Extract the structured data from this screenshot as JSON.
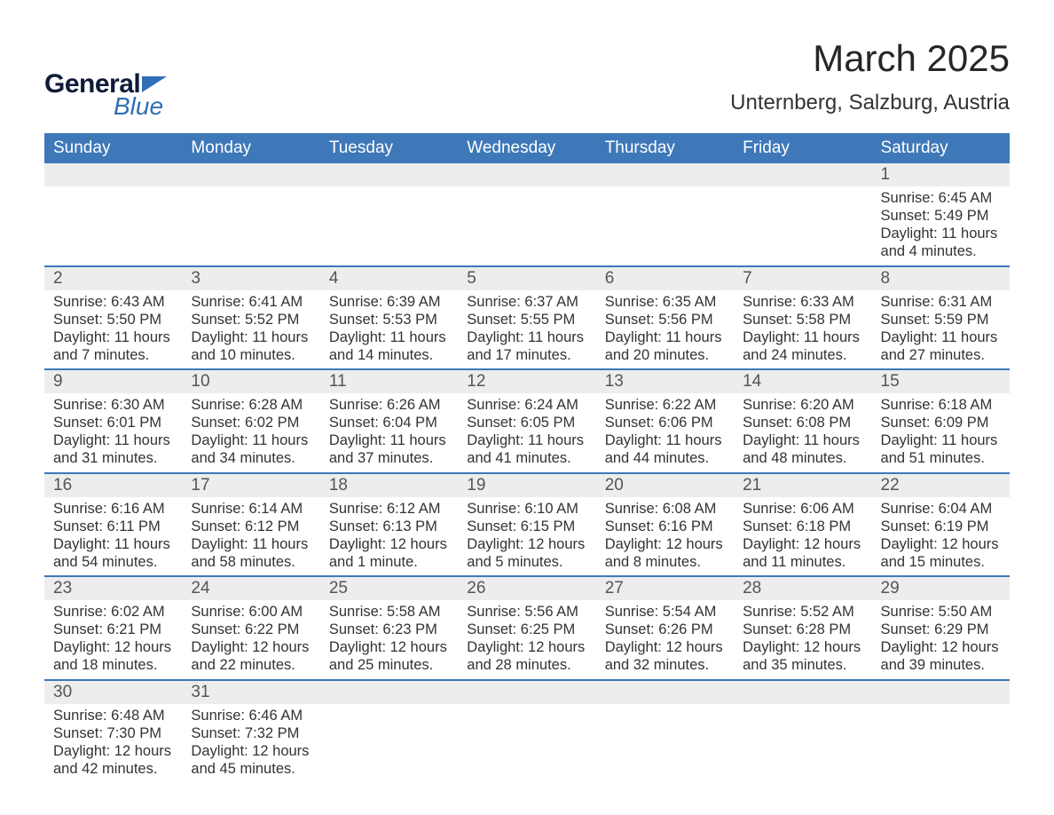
{
  "logo": {
    "word1": "General",
    "word2": "Blue",
    "brand_navy": "#0f1a3a",
    "brand_blue": "#2f6fb5"
  },
  "title": "March 2025",
  "location": "Unternberg, Salzburg, Austria",
  "styles": {
    "header_bg": "#3e78b9",
    "header_fg": "#ffffff",
    "daynum_bg": "#ededed",
    "week_divider": "#3e78b9",
    "body_fg": "#333333",
    "title_fontsize": 42,
    "location_fontsize": 24,
    "dayheader_fontsize": 19,
    "daynum_fontsize": 19,
    "body_fontsize": 16.5
  },
  "day_names": [
    "Sunday",
    "Monday",
    "Tuesday",
    "Wednesday",
    "Thursday",
    "Friday",
    "Saturday"
  ],
  "weeks": [
    [
      {
        "n": "",
        "sr": "",
        "ss": "",
        "dl": ""
      },
      {
        "n": "",
        "sr": "",
        "ss": "",
        "dl": ""
      },
      {
        "n": "",
        "sr": "",
        "ss": "",
        "dl": ""
      },
      {
        "n": "",
        "sr": "",
        "ss": "",
        "dl": ""
      },
      {
        "n": "",
        "sr": "",
        "ss": "",
        "dl": ""
      },
      {
        "n": "",
        "sr": "",
        "ss": "",
        "dl": ""
      },
      {
        "n": "1",
        "sr": "Sunrise: 6:45 AM",
        "ss": "Sunset: 5:49 PM",
        "dl": "Daylight: 11 hours and 4 minutes."
      }
    ],
    [
      {
        "n": "2",
        "sr": "Sunrise: 6:43 AM",
        "ss": "Sunset: 5:50 PM",
        "dl": "Daylight: 11 hours and 7 minutes."
      },
      {
        "n": "3",
        "sr": "Sunrise: 6:41 AM",
        "ss": "Sunset: 5:52 PM",
        "dl": "Daylight: 11 hours and 10 minutes."
      },
      {
        "n": "4",
        "sr": "Sunrise: 6:39 AM",
        "ss": "Sunset: 5:53 PM",
        "dl": "Daylight: 11 hours and 14 minutes."
      },
      {
        "n": "5",
        "sr": "Sunrise: 6:37 AM",
        "ss": "Sunset: 5:55 PM",
        "dl": "Daylight: 11 hours and 17 minutes."
      },
      {
        "n": "6",
        "sr": "Sunrise: 6:35 AM",
        "ss": "Sunset: 5:56 PM",
        "dl": "Daylight: 11 hours and 20 minutes."
      },
      {
        "n": "7",
        "sr": "Sunrise: 6:33 AM",
        "ss": "Sunset: 5:58 PM",
        "dl": "Daylight: 11 hours and 24 minutes."
      },
      {
        "n": "8",
        "sr": "Sunrise: 6:31 AM",
        "ss": "Sunset: 5:59 PM",
        "dl": "Daylight: 11 hours and 27 minutes."
      }
    ],
    [
      {
        "n": "9",
        "sr": "Sunrise: 6:30 AM",
        "ss": "Sunset: 6:01 PM",
        "dl": "Daylight: 11 hours and 31 minutes."
      },
      {
        "n": "10",
        "sr": "Sunrise: 6:28 AM",
        "ss": "Sunset: 6:02 PM",
        "dl": "Daylight: 11 hours and 34 minutes."
      },
      {
        "n": "11",
        "sr": "Sunrise: 6:26 AM",
        "ss": "Sunset: 6:04 PM",
        "dl": "Daylight: 11 hours and 37 minutes."
      },
      {
        "n": "12",
        "sr": "Sunrise: 6:24 AM",
        "ss": "Sunset: 6:05 PM",
        "dl": "Daylight: 11 hours and 41 minutes."
      },
      {
        "n": "13",
        "sr": "Sunrise: 6:22 AM",
        "ss": "Sunset: 6:06 PM",
        "dl": "Daylight: 11 hours and 44 minutes."
      },
      {
        "n": "14",
        "sr": "Sunrise: 6:20 AM",
        "ss": "Sunset: 6:08 PM",
        "dl": "Daylight: 11 hours and 48 minutes."
      },
      {
        "n": "15",
        "sr": "Sunrise: 6:18 AM",
        "ss": "Sunset: 6:09 PM",
        "dl": "Daylight: 11 hours and 51 minutes."
      }
    ],
    [
      {
        "n": "16",
        "sr": "Sunrise: 6:16 AM",
        "ss": "Sunset: 6:11 PM",
        "dl": "Daylight: 11 hours and 54 minutes."
      },
      {
        "n": "17",
        "sr": "Sunrise: 6:14 AM",
        "ss": "Sunset: 6:12 PM",
        "dl": "Daylight: 11 hours and 58 minutes."
      },
      {
        "n": "18",
        "sr": "Sunrise: 6:12 AM",
        "ss": "Sunset: 6:13 PM",
        "dl": "Daylight: 12 hours and 1 minute."
      },
      {
        "n": "19",
        "sr": "Sunrise: 6:10 AM",
        "ss": "Sunset: 6:15 PM",
        "dl": "Daylight: 12 hours and 5 minutes."
      },
      {
        "n": "20",
        "sr": "Sunrise: 6:08 AM",
        "ss": "Sunset: 6:16 PM",
        "dl": "Daylight: 12 hours and 8 minutes."
      },
      {
        "n": "21",
        "sr": "Sunrise: 6:06 AM",
        "ss": "Sunset: 6:18 PM",
        "dl": "Daylight: 12 hours and 11 minutes."
      },
      {
        "n": "22",
        "sr": "Sunrise: 6:04 AM",
        "ss": "Sunset: 6:19 PM",
        "dl": "Daylight: 12 hours and 15 minutes."
      }
    ],
    [
      {
        "n": "23",
        "sr": "Sunrise: 6:02 AM",
        "ss": "Sunset: 6:21 PM",
        "dl": "Daylight: 12 hours and 18 minutes."
      },
      {
        "n": "24",
        "sr": "Sunrise: 6:00 AM",
        "ss": "Sunset: 6:22 PM",
        "dl": "Daylight: 12 hours and 22 minutes."
      },
      {
        "n": "25",
        "sr": "Sunrise: 5:58 AM",
        "ss": "Sunset: 6:23 PM",
        "dl": "Daylight: 12 hours and 25 minutes."
      },
      {
        "n": "26",
        "sr": "Sunrise: 5:56 AM",
        "ss": "Sunset: 6:25 PM",
        "dl": "Daylight: 12 hours and 28 minutes."
      },
      {
        "n": "27",
        "sr": "Sunrise: 5:54 AM",
        "ss": "Sunset: 6:26 PM",
        "dl": "Daylight: 12 hours and 32 minutes."
      },
      {
        "n": "28",
        "sr": "Sunrise: 5:52 AM",
        "ss": "Sunset: 6:28 PM",
        "dl": "Daylight: 12 hours and 35 minutes."
      },
      {
        "n": "29",
        "sr": "Sunrise: 5:50 AM",
        "ss": "Sunset: 6:29 PM",
        "dl": "Daylight: 12 hours and 39 minutes."
      }
    ],
    [
      {
        "n": "30",
        "sr": "Sunrise: 6:48 AM",
        "ss": "Sunset: 7:30 PM",
        "dl": "Daylight: 12 hours and 42 minutes."
      },
      {
        "n": "31",
        "sr": "Sunrise: 6:46 AM",
        "ss": "Sunset: 7:32 PM",
        "dl": "Daylight: 12 hours and 45 minutes."
      },
      {
        "n": "",
        "sr": "",
        "ss": "",
        "dl": ""
      },
      {
        "n": "",
        "sr": "",
        "ss": "",
        "dl": ""
      },
      {
        "n": "",
        "sr": "",
        "ss": "",
        "dl": ""
      },
      {
        "n": "",
        "sr": "",
        "ss": "",
        "dl": ""
      },
      {
        "n": "",
        "sr": "",
        "ss": "",
        "dl": ""
      }
    ]
  ]
}
